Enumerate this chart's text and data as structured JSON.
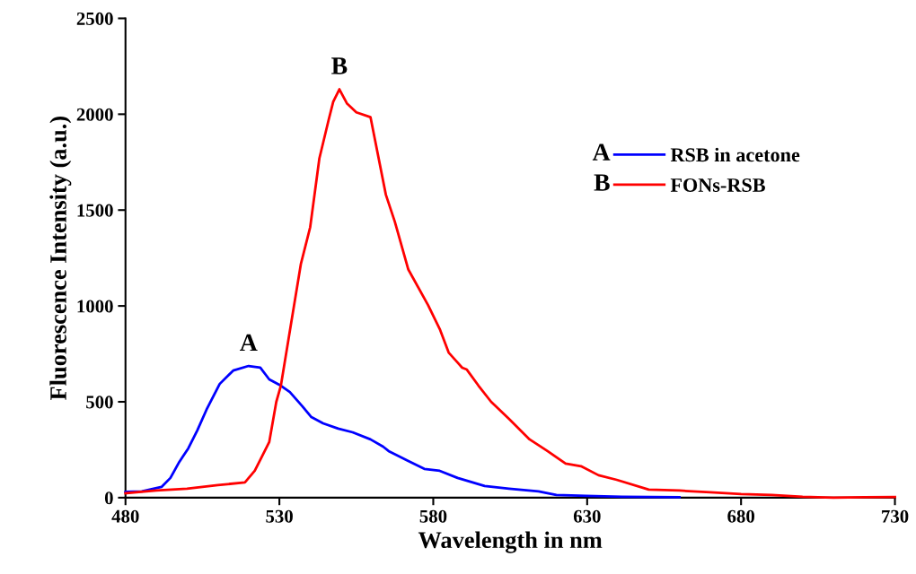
{
  "chart_data": {
    "type": "line",
    "xlabel": "Wavelength in nm",
    "ylabel": "Fluorescence Intensity (a.u.)",
    "xlim": [
      480,
      730
    ],
    "xticks": [
      480,
      530,
      580,
      630,
      680,
      730
    ],
    "ylim": [
      0,
      2500
    ],
    "yticks": [
      0,
      500,
      1000,
      1500,
      2000,
      2500
    ],
    "grid": false,
    "legend": "center right",
    "marker": "none",
    "line_style": "solid",
    "annotations": [
      "A",
      "B"
    ],
    "series": [
      {
        "name": "RSB in acetone",
        "color": "#0000ff",
        "x": [
          480,
          485.3,
          491.7,
          494.6,
          497.5,
          500.4,
          503.3,
          506.3,
          510.6,
          515,
          520,
          523.8,
          526.7,
          530.5,
          533.4,
          537.5,
          540.4,
          544.2,
          549.1,
          553.8,
          559.6,
          563.7,
          565.5,
          571.3,
          577.1,
          582.1,
          587.9,
          596.7,
          604.6,
          614.2,
          620,
          629.7,
          641.3,
          660
        ],
        "values": [
          30,
          33,
          56,
          103,
          187,
          257,
          350,
          458,
          593,
          663,
          687,
          678,
          617,
          584,
          551,
          476,
          420,
          388,
          360,
          341,
          304,
          266,
          243,
          196,
          150,
          140,
          103,
          61,
          47,
          33,
          14,
          9,
          5,
          2
        ]
      },
      {
        "name": "FONs-RSB",
        "color": "#ff0000",
        "x": [
          480,
          490,
          500,
          510,
          518.8,
          522,
          526.7,
          529,
          530.5,
          533,
          537,
          540,
          543,
          546,
          547.5,
          549.5,
          552,
          555,
          559.6,
          564.6,
          567.5,
          571.9,
          578.3,
          582.1,
          585,
          589.4,
          590.9,
          594.7,
          598.8,
          604.6,
          611.3,
          617.1,
          623,
          628,
          633.7,
          639.6,
          650,
          660,
          670,
          680,
          690,
          700,
          710,
          720,
          730
        ],
        "values": [
          23,
          37,
          47,
          65,
          80,
          140,
          290,
          500,
          585,
          830,
          1220,
          1410,
          1770,
          1970,
          2065,
          2130,
          2055,
          2010,
          1985,
          1580,
          1440,
          1190,
          1005,
          880,
          757,
          678,
          668,
          584,
          500,
          411,
          304,
          243,
          178,
          164,
          117,
          93,
          42,
          37,
          28,
          19,
          14,
          5,
          0,
          2,
          3
        ]
      }
    ]
  }
}
